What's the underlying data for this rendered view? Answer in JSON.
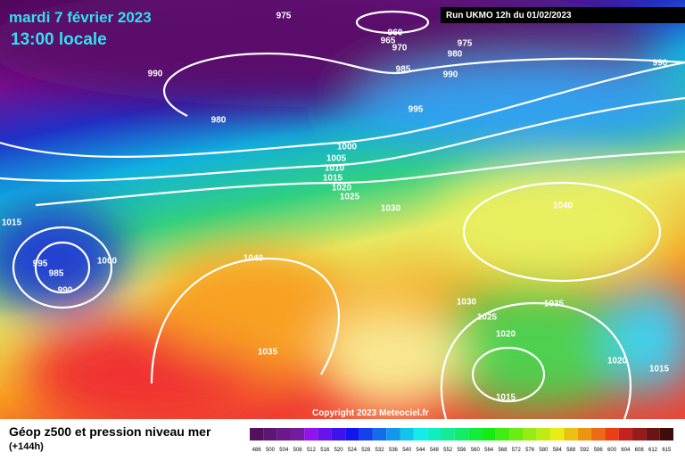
{
  "header": {
    "title": "mardi 7 février 2023",
    "time": "13:00 locale",
    "run": "Run UKMO 12h du 01/02/2023"
  },
  "isobar_labels": [
    "975",
    "960",
    "965",
    "970",
    "975",
    "980",
    "985",
    "990",
    "990",
    "990",
    "995",
    "980",
    "1000",
    "1005",
    "1010",
    "1015",
    "1020",
    "1025",
    "1030",
    "1040",
    "1015",
    "1040",
    "995",
    "985",
    "1000",
    "990",
    "1030",
    "1035",
    "1025",
    "1020",
    "1035",
    "1020",
    "1015",
    "1015"
  ],
  "copyright": "Copyright 2023 Meteociel.fr",
  "footer": {
    "title": "Géop z500 et pression niveau mer",
    "lead": "(+144h)"
  },
  "scale": [
    "486",
    "500",
    "504",
    "508",
    "512",
    "516",
    "520",
    "524",
    "528",
    "532",
    "536",
    "540",
    "544",
    "548",
    "552",
    "556",
    "560",
    "564",
    "568",
    "572",
    "576",
    "580",
    "584",
    "588",
    "592",
    "596",
    "600",
    "604",
    "608",
    "612",
    "615"
  ]
}
